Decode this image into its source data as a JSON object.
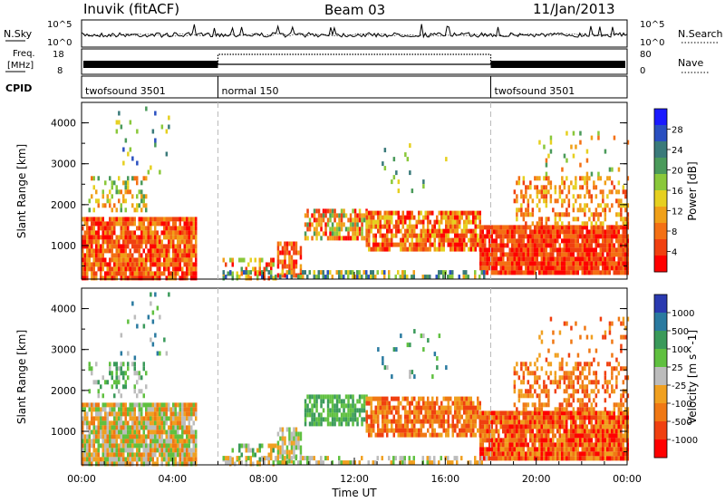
{
  "header": {
    "station": "Inuvik (fitACF)",
    "beam": "Beam 03",
    "date": "11/Jan/2013"
  },
  "panels": {
    "nsky_label": "N.Sky",
    "nsearch_label": "N.Search",
    "nsky_tick_top": "10^5",
    "nsky_tick_bottom": "10^0",
    "freq_label_1": "Freq.",
    "freq_label_2": "[MHz]",
    "freq_tick_top": "18",
    "freq_tick_bottom": "8",
    "nave_label": "Nave",
    "nave_tick_top": "80",
    "nave_tick_bottom": "0",
    "cpid_label": "CPID",
    "cpid_segments": [
      {
        "label": "twofsound 3501",
        "start_hour": 0,
        "end_hour": 6
      },
      {
        "label": "normal 150",
        "start_hour": 6,
        "end_hour": 18
      },
      {
        "label": "twofsound 3501",
        "start_hour": 18,
        "end_hour": 24
      }
    ]
  },
  "chart_data": [
    {
      "type": "heatmap",
      "name": "power",
      "ylabel": "Slant Range [km]",
      "ylim": [
        180,
        4500
      ],
      "yticks": [
        1000,
        2000,
        3000,
        4000
      ],
      "xlim_hours": [
        0,
        24
      ],
      "colorbar_label": "Power [dB]",
      "colorbar_ticks": [
        "4",
        "8",
        "12",
        "16",
        "20",
        "24",
        "28"
      ],
      "colorbar_colors": [
        "#1a1aff",
        "#2a4fc0",
        "#3a7a7a",
        "#4a9a5a",
        "#8ac83a",
        "#e6d020",
        "#f0a018",
        "#f47014",
        "#f04010",
        "#ff0000"
      ]
    },
    {
      "type": "heatmap",
      "name": "velocity",
      "xlabel": "Time UT",
      "ylabel": "Slant Range [km]",
      "ylim": [
        180,
        4500
      ],
      "yticks": [
        1000,
        2000,
        3000,
        4000
      ],
      "xlim_hours": [
        0,
        24
      ],
      "xticks": [
        "00:00",
        "04:00",
        "08:00",
        "12:00",
        "16:00",
        "20:00",
        "00:00"
      ],
      "colorbar_label": "Velocity [m s^-1]",
      "colorbar_ticks": [
        "1000",
        "500",
        "100",
        "25",
        "-25",
        "-100",
        "-500",
        "-1000"
      ],
      "colorbar_colors": [
        "#2a3ab0",
        "#2a7aa0",
        "#3a9a5a",
        "#60c040",
        "#bcbcbc",
        "#f0a020",
        "#f07814",
        "#f04010",
        "#ff0000"
      ]
    }
  ]
}
